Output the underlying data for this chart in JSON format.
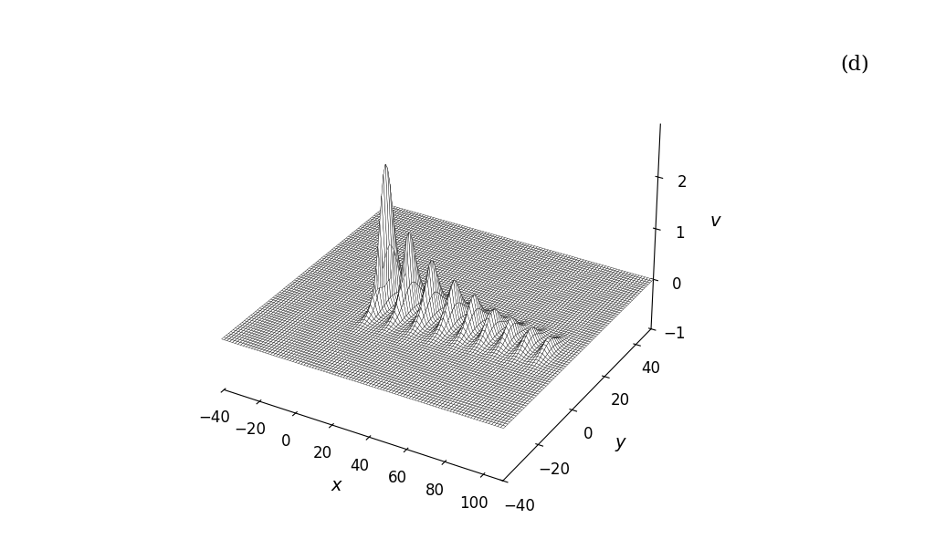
{
  "x_min": -40,
  "x_max": 110,
  "y_min": -40,
  "y_max": 50,
  "x_label": "x",
  "y_label": "y",
  "v_label": "v",
  "annotation": "(d)",
  "v_min": -1,
  "v_max": 3,
  "nx": 100,
  "ny": 80,
  "background_color": "#ffffff",
  "surface_color": "#ffffff",
  "edge_color": "#000000",
  "elev": 30,
  "azim": -60,
  "soliton_params": [
    [
      10,
      0,
      2.8,
      1.5,
      5.0
    ],
    [
      22,
      0,
      1.5,
      1.5,
      5.0
    ],
    [
      34,
      0,
      1.1,
      1.8,
      5.0
    ],
    [
      46,
      0,
      0.85,
      2.0,
      5.0
    ],
    [
      57,
      0,
      0.65,
      2.0,
      5.0
    ],
    [
      67,
      0,
      0.52,
      2.2,
      5.0
    ],
    [
      77,
      0,
      0.42,
      2.2,
      5.0
    ],
    [
      87,
      0,
      0.34,
      2.5,
      5.0
    ],
    [
      97,
      0,
      0.27,
      2.5,
      5.0
    ]
  ],
  "neg_params": [
    [
      8,
      0,
      -1.0,
      1.2,
      4.0
    ]
  ]
}
